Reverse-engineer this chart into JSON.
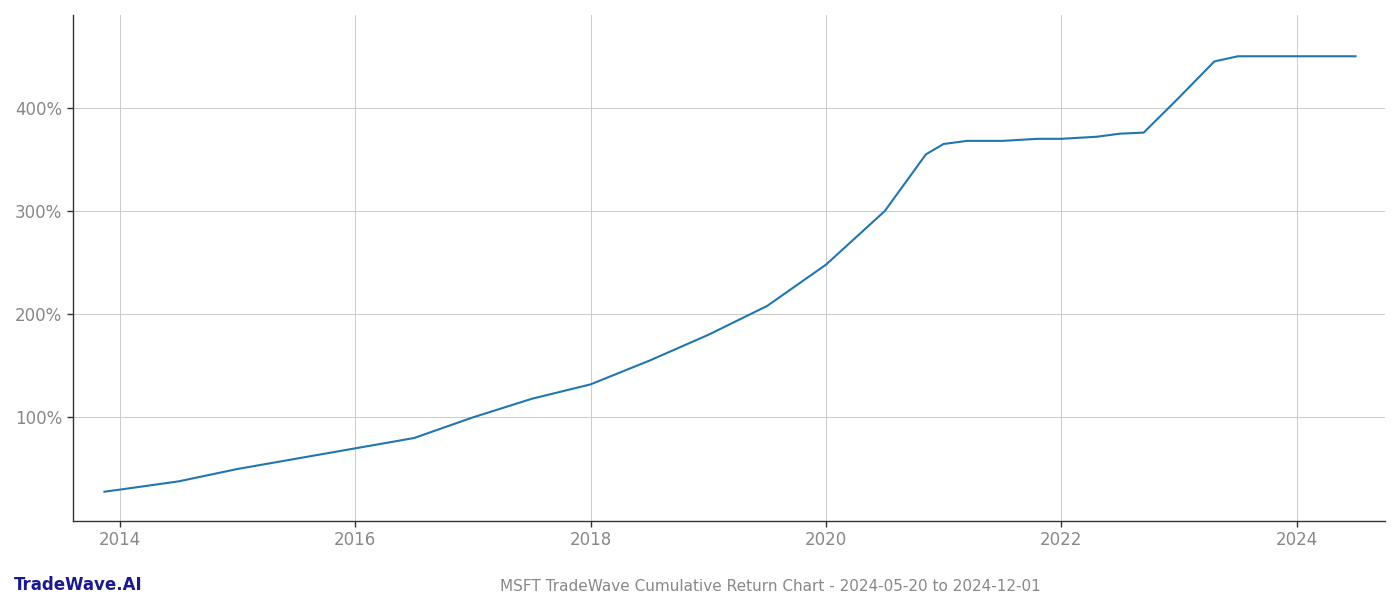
{
  "title": "MSFT TradeWave Cumulative Return Chart - 2024-05-20 to 2024-12-01",
  "watermark": "TradeWave.AI",
  "line_color": "#2176ae",
  "background_color": "#ffffff",
  "grid_color": "#cccccc",
  "years": [
    2013.87,
    2014.0,
    2014.5,
    2015.0,
    2015.5,
    2016.0,
    2016.5,
    2017.0,
    2017.5,
    2018.0,
    2018.5,
    2019.0,
    2019.5,
    2019.9,
    2020.0,
    2020.5,
    2020.85,
    2021.0,
    2021.2,
    2021.5,
    2021.8,
    2022.0,
    2022.3,
    2022.5,
    2022.7,
    2023.0,
    2023.3,
    2023.5,
    2023.7,
    2024.0,
    2024.3,
    2024.5
  ],
  "values": [
    28,
    30,
    38,
    50,
    60,
    70,
    80,
    100,
    118,
    132,
    155,
    180,
    208,
    240,
    248,
    300,
    355,
    365,
    368,
    368,
    370,
    370,
    372,
    375,
    376,
    410,
    445,
    450,
    450,
    450,
    450,
    450
  ],
  "xlim": [
    2013.6,
    2024.75
  ],
  "ylim": [
    0,
    490
  ],
  "yticks": [
    100,
    200,
    300,
    400
  ],
  "xticks": [
    2014,
    2016,
    2018,
    2020,
    2022,
    2024
  ],
  "line_width": 1.5,
  "title_fontsize": 11,
  "tick_fontsize": 12,
  "watermark_fontsize": 12,
  "spine_color": "#333333",
  "tick_color": "#888888"
}
